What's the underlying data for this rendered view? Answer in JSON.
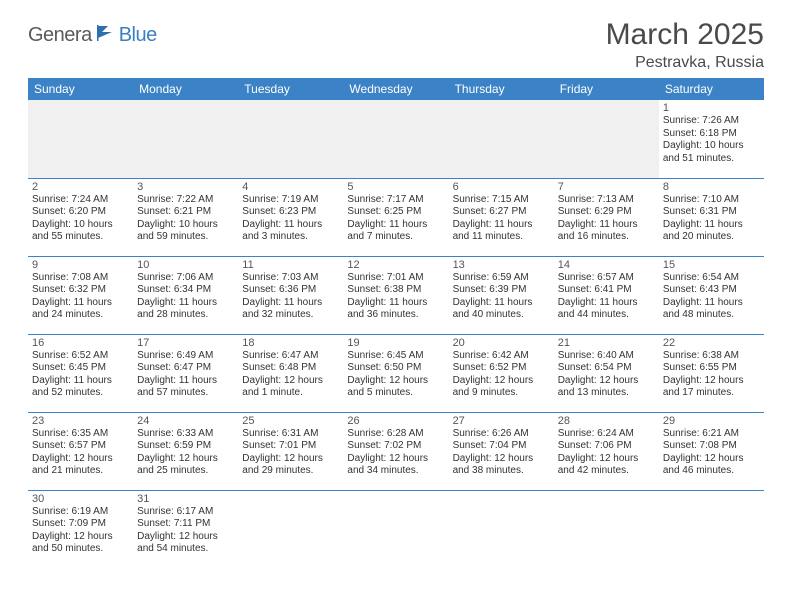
{
  "logo": {
    "part1": "Genera",
    "part2": "Blue"
  },
  "title": "March 2025",
  "location": "Pestravka, Russia",
  "colors": {
    "header_bg": "#3b82c7",
    "header_text": "#ffffff",
    "border": "#3b82c7",
    "empty_bg": "#f0f0f0",
    "logo_gray": "#5a5a5a",
    "logo_blue": "#3b7fc4",
    "text": "#333333",
    "title_color": "#4a4a4a"
  },
  "weekdays": [
    "Sunday",
    "Monday",
    "Tuesday",
    "Wednesday",
    "Thursday",
    "Friday",
    "Saturday"
  ],
  "lead_empty": 6,
  "days": [
    {
      "n": 1,
      "sr": "7:26 AM",
      "ss": "6:18 PM",
      "dl": "10 hours and 51 minutes."
    },
    {
      "n": 2,
      "sr": "7:24 AM",
      "ss": "6:20 PM",
      "dl": "10 hours and 55 minutes."
    },
    {
      "n": 3,
      "sr": "7:22 AM",
      "ss": "6:21 PM",
      "dl": "10 hours and 59 minutes."
    },
    {
      "n": 4,
      "sr": "7:19 AM",
      "ss": "6:23 PM",
      "dl": "11 hours and 3 minutes."
    },
    {
      "n": 5,
      "sr": "7:17 AM",
      "ss": "6:25 PM",
      "dl": "11 hours and 7 minutes."
    },
    {
      "n": 6,
      "sr": "7:15 AM",
      "ss": "6:27 PM",
      "dl": "11 hours and 11 minutes."
    },
    {
      "n": 7,
      "sr": "7:13 AM",
      "ss": "6:29 PM",
      "dl": "11 hours and 16 minutes."
    },
    {
      "n": 8,
      "sr": "7:10 AM",
      "ss": "6:31 PM",
      "dl": "11 hours and 20 minutes."
    },
    {
      "n": 9,
      "sr": "7:08 AM",
      "ss": "6:32 PM",
      "dl": "11 hours and 24 minutes."
    },
    {
      "n": 10,
      "sr": "7:06 AM",
      "ss": "6:34 PM",
      "dl": "11 hours and 28 minutes."
    },
    {
      "n": 11,
      "sr": "7:03 AM",
      "ss": "6:36 PM",
      "dl": "11 hours and 32 minutes."
    },
    {
      "n": 12,
      "sr": "7:01 AM",
      "ss": "6:38 PM",
      "dl": "11 hours and 36 minutes."
    },
    {
      "n": 13,
      "sr": "6:59 AM",
      "ss": "6:39 PM",
      "dl": "11 hours and 40 minutes."
    },
    {
      "n": 14,
      "sr": "6:57 AM",
      "ss": "6:41 PM",
      "dl": "11 hours and 44 minutes."
    },
    {
      "n": 15,
      "sr": "6:54 AM",
      "ss": "6:43 PM",
      "dl": "11 hours and 48 minutes."
    },
    {
      "n": 16,
      "sr": "6:52 AM",
      "ss": "6:45 PM",
      "dl": "11 hours and 52 minutes."
    },
    {
      "n": 17,
      "sr": "6:49 AM",
      "ss": "6:47 PM",
      "dl": "11 hours and 57 minutes."
    },
    {
      "n": 18,
      "sr": "6:47 AM",
      "ss": "6:48 PM",
      "dl": "12 hours and 1 minute."
    },
    {
      "n": 19,
      "sr": "6:45 AM",
      "ss": "6:50 PM",
      "dl": "12 hours and 5 minutes."
    },
    {
      "n": 20,
      "sr": "6:42 AM",
      "ss": "6:52 PM",
      "dl": "12 hours and 9 minutes."
    },
    {
      "n": 21,
      "sr": "6:40 AM",
      "ss": "6:54 PM",
      "dl": "12 hours and 13 minutes."
    },
    {
      "n": 22,
      "sr": "6:38 AM",
      "ss": "6:55 PM",
      "dl": "12 hours and 17 minutes."
    },
    {
      "n": 23,
      "sr": "6:35 AM",
      "ss": "6:57 PM",
      "dl": "12 hours and 21 minutes."
    },
    {
      "n": 24,
      "sr": "6:33 AM",
      "ss": "6:59 PM",
      "dl": "12 hours and 25 minutes."
    },
    {
      "n": 25,
      "sr": "6:31 AM",
      "ss": "7:01 PM",
      "dl": "12 hours and 29 minutes."
    },
    {
      "n": 26,
      "sr": "6:28 AM",
      "ss": "7:02 PM",
      "dl": "12 hours and 34 minutes."
    },
    {
      "n": 27,
      "sr": "6:26 AM",
      "ss": "7:04 PM",
      "dl": "12 hours and 38 minutes."
    },
    {
      "n": 28,
      "sr": "6:24 AM",
      "ss": "7:06 PM",
      "dl": "12 hours and 42 minutes."
    },
    {
      "n": 29,
      "sr": "6:21 AM",
      "ss": "7:08 PM",
      "dl": "12 hours and 46 minutes."
    },
    {
      "n": 30,
      "sr": "6:19 AM",
      "ss": "7:09 PM",
      "dl": "12 hours and 50 minutes."
    },
    {
      "n": 31,
      "sr": "6:17 AM",
      "ss": "7:11 PM",
      "dl": "12 hours and 54 minutes."
    }
  ],
  "labels": {
    "sunrise": "Sunrise:",
    "sunset": "Sunset:",
    "daylight": "Daylight:"
  }
}
